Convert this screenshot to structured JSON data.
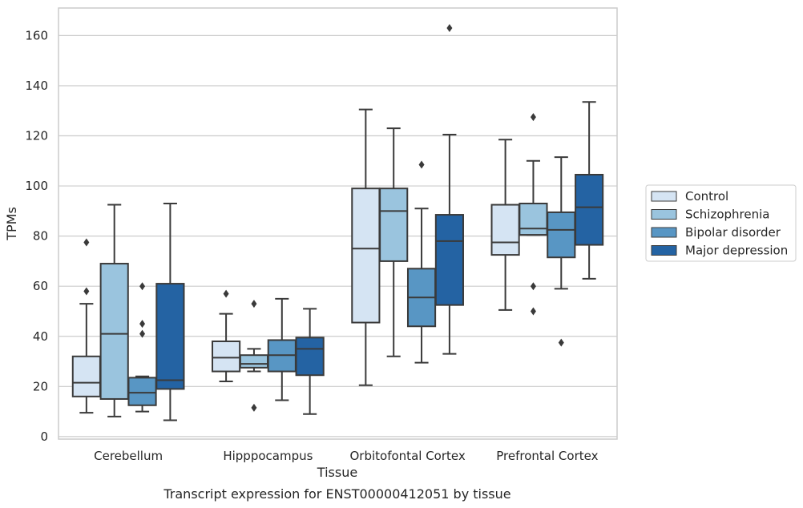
{
  "chart_data": {
    "type": "box",
    "caption": "Transcript expression for ENST00000412051 by tissue",
    "xlabel": "Tissue",
    "ylabel": "TPMs",
    "ylim": [
      -1,
      171
    ],
    "yticks": [
      0,
      20,
      40,
      60,
      80,
      100,
      120,
      140,
      160
    ],
    "grid": "horizontal",
    "legend_position": "right",
    "categories": [
      "Cerebellum",
      "Hipppocampus",
      "Orbitofontal Cortex",
      "Prefrontal Cortex"
    ],
    "series": [
      {
        "name": "Control",
        "color": "#d5e4f3",
        "boxes": [
          {
            "whisker_low": 9.5,
            "q1": 16,
            "median": 21.5,
            "q3": 32,
            "whisker_high": 53,
            "outliers": [
              58,
              77.5
            ]
          },
          {
            "whisker_low": 22,
            "q1": 26,
            "median": 31.5,
            "q3": 38,
            "whisker_high": 49,
            "outliers": [
              57
            ]
          },
          {
            "whisker_low": 20.5,
            "q1": 45.5,
            "median": 75,
            "q3": 99,
            "whisker_high": 130.5,
            "outliers": []
          },
          {
            "whisker_low": 50.5,
            "q1": 72.5,
            "median": 77.5,
            "q3": 92.5,
            "whisker_high": 118.5,
            "outliers": []
          }
        ]
      },
      {
        "name": "Schizophrenia",
        "color": "#9ac4de",
        "boxes": [
          {
            "whisker_low": 8,
            "q1": 15,
            "median": 41,
            "q3": 69,
            "whisker_high": 92.5,
            "outliers": []
          },
          {
            "whisker_low": 26,
            "q1": 27.5,
            "median": 29,
            "q3": 32.5,
            "whisker_high": 35,
            "outliers": [
              11.5,
              53
            ]
          },
          {
            "whisker_low": 32,
            "q1": 70,
            "median": 90,
            "q3": 99,
            "whisker_high": 123,
            "outliers": []
          },
          {
            "whisker_low": 80.5,
            "q1": 80.5,
            "median": 83,
            "q3": 93,
            "whisker_high": 110,
            "outliers": [
              60,
              50,
              127.5
            ]
          }
        ]
      },
      {
        "name": "Bipolar disorder",
        "color": "#5896c4",
        "boxes": [
          {
            "whisker_low": 10,
            "q1": 12.5,
            "median": 17.5,
            "q3": 23.5,
            "whisker_high": 24,
            "outliers": [
              60,
              45,
              41
            ]
          },
          {
            "whisker_low": 14.5,
            "q1": 26,
            "median": 32.5,
            "q3": 38.5,
            "whisker_high": 55,
            "outliers": []
          },
          {
            "whisker_low": 29.5,
            "q1": 44,
            "median": 55.5,
            "q3": 67,
            "whisker_high": 91,
            "outliers": [
              108.5
            ]
          },
          {
            "whisker_low": 59,
            "q1": 71.5,
            "median": 82.5,
            "q3": 89.5,
            "whisker_high": 111.5,
            "outliers": [
              37.5
            ]
          }
        ]
      },
      {
        "name": "Major depression",
        "color": "#2463a3",
        "boxes": [
          {
            "whisker_low": 6.5,
            "q1": 19,
            "median": 22.5,
            "q3": 61,
            "whisker_high": 93,
            "outliers": []
          },
          {
            "whisker_low": 9,
            "q1": 24.5,
            "median": 35,
            "q3": 39.5,
            "whisker_high": 51,
            "outliers": []
          },
          {
            "whisker_low": 33,
            "q1": 52.5,
            "median": 78,
            "q3": 88.5,
            "whisker_high": 120.5,
            "outliers": [
              163
            ]
          },
          {
            "whisker_low": 63,
            "q1": 76.5,
            "median": 91.5,
            "q3": 104.5,
            "whisker_high": 133.5,
            "outliers": []
          }
        ]
      }
    ]
  }
}
